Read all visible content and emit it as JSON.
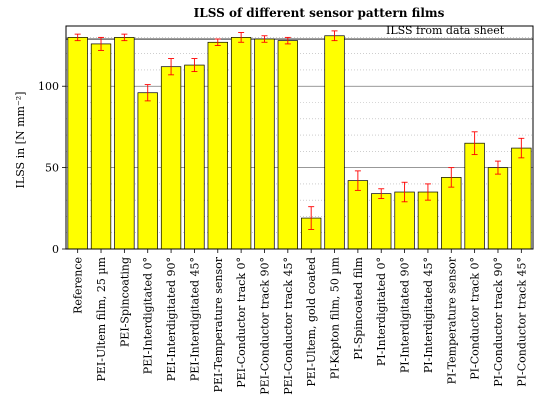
{
  "chart_data": {
    "type": "bar",
    "title": "ILSS of different sensor pattern films",
    "ylabel": "ILSS in [N mm⁻²]",
    "xlabel": "",
    "ylim": [
      0,
      137
    ],
    "yticks": [
      0,
      50,
      100
    ],
    "grid": true,
    "categories": [
      "Reference",
      "PEI-Ultem film, 25 µm",
      "PEI-Spincoating",
      "PEI-Interdigitated 0°",
      "PEI-Interdigitated 90°",
      "PEI-Interdigitated 45°",
      "PEI-Temperature sensor",
      "PEI-Conductor track 0°",
      "PEI-Conductor track 90°",
      "PEI-Conductor track 45°",
      "PEI-Ultem, gold coated",
      "PI-Kapton film, 50 µm",
      "PI-Spincoated film",
      "PI-Interdigitated 0°",
      "PI-Interdigitated 90°",
      "PI-Interdigitated 45°",
      "PI-Temperature sensor",
      "PI-Conductor track 0°",
      "PI-Conductor track 90°",
      "PI-Conductor track 45°"
    ],
    "values": [
      130,
      126,
      130,
      96,
      112,
      113,
      127,
      130,
      129,
      128,
      19,
      131,
      42,
      34,
      35,
      35,
      44,
      65,
      50,
      62
    ],
    "errors": [
      2,
      4,
      2,
      5,
      5,
      4,
      2,
      3,
      2,
      2,
      7,
      3,
      6,
      3,
      6,
      5,
      6,
      7,
      4,
      6
    ],
    "reference_line": {
      "value": 129,
      "label": "ILSS from data sheet"
    },
    "colors": {
      "bar": "#ffff00",
      "error": "#ff0000",
      "edge": "#000000"
    }
  }
}
